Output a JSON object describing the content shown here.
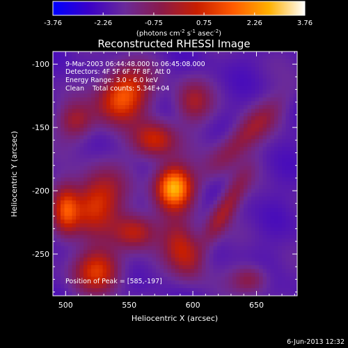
{
  "chart_data": {
    "type": "heatmap",
    "title": "Reconstructed RHESSI Image",
    "xlabel": "Heliocentric X (arcsec)",
    "ylabel": "Heliocentric Y (arcsec)",
    "xlim": [
      490,
      682
    ],
    "ylim": [
      -283,
      -90
    ],
    "x_ticks": [
      500,
      550,
      600,
      650
    ],
    "y_ticks": [
      -100,
      -150,
      -200,
      -250
    ],
    "colorbar": {
      "range": [
        -3.76,
        3.76
      ],
      "ticks": [
        "-3.76",
        "-2.26",
        "-0.75",
        "0.75",
        "2.26",
        "3.76"
      ],
      "label_main": "(photons cm",
      "exp1": "-2",
      "mid": " s",
      "exp2": "-1",
      "mid2": " asec",
      "exp3": "-2",
      "tail": ")",
      "colors": [
        "#0000ff",
        "#3a00c8",
        "#6a2a9a",
        "#8a1a4a",
        "#c81e00",
        "#ff5a00",
        "#ffb000",
        "#ffffff"
      ]
    },
    "annotations": {
      "time": "9-Mar-2003 06:44:48.000 to 06:45:08.000",
      "detectors": "Detectors: 4F 5F 6F 7F 8F, Att 0",
      "energy": "Energy Range: 3.0 - 6.0 keV",
      "clean": "Clean    Total counts: 5.34E+04",
      "peak": "Position of Peak = [585,-197]"
    },
    "peak": {
      "x": 585,
      "y": -197
    },
    "sources": [
      {
        "x": 585,
        "y": -197,
        "sx": 10,
        "sy": 12,
        "amp": 4.6,
        "rot": 0
      },
      {
        "x": 545,
        "y": -125,
        "sx": 13,
        "sy": 16,
        "amp": 3.6,
        "rot": -40
      },
      {
        "x": 523,
        "y": -210,
        "sx": 14,
        "sy": 18,
        "amp": 3.0,
        "rot": -30
      },
      {
        "x": 570,
        "y": -160,
        "sx": 12,
        "sy": 10,
        "amp": 2.6,
        "rot": 0
      },
      {
        "x": 500,
        "y": -215,
        "sx": 7,
        "sy": 14,
        "amp": 2.6,
        "rot": 0
      },
      {
        "x": 525,
        "y": -263,
        "sx": 13,
        "sy": 12,
        "amp": 2.9,
        "rot": 0
      },
      {
        "x": 592,
        "y": -246,
        "sx": 10,
        "sy": 16,
        "amp": 2.5,
        "rot": 20
      },
      {
        "x": 625,
        "y": -215,
        "sx": 6,
        "sy": 24,
        "amp": 2.0,
        "rot": -30
      },
      {
        "x": 640,
        "y": -158,
        "sx": 8,
        "sy": 30,
        "amp": 1.8,
        "rot": -45
      },
      {
        "x": 600,
        "y": -130,
        "sx": 10,
        "sy": 12,
        "amp": 1.8,
        "rot": 0
      },
      {
        "x": 555,
        "y": -232,
        "sx": 12,
        "sy": 10,
        "amp": 2.4,
        "rot": 0
      },
      {
        "x": 645,
        "y": -270,
        "sx": 10,
        "sy": 8,
        "amp": 1.6,
        "rot": 0
      },
      {
        "x": 508,
        "y": -145,
        "sx": 10,
        "sy": 10,
        "amp": 1.8,
        "rot": 0
      }
    ],
    "background": -2.0,
    "footer_date": "6-Jun-2013 12:32"
  }
}
